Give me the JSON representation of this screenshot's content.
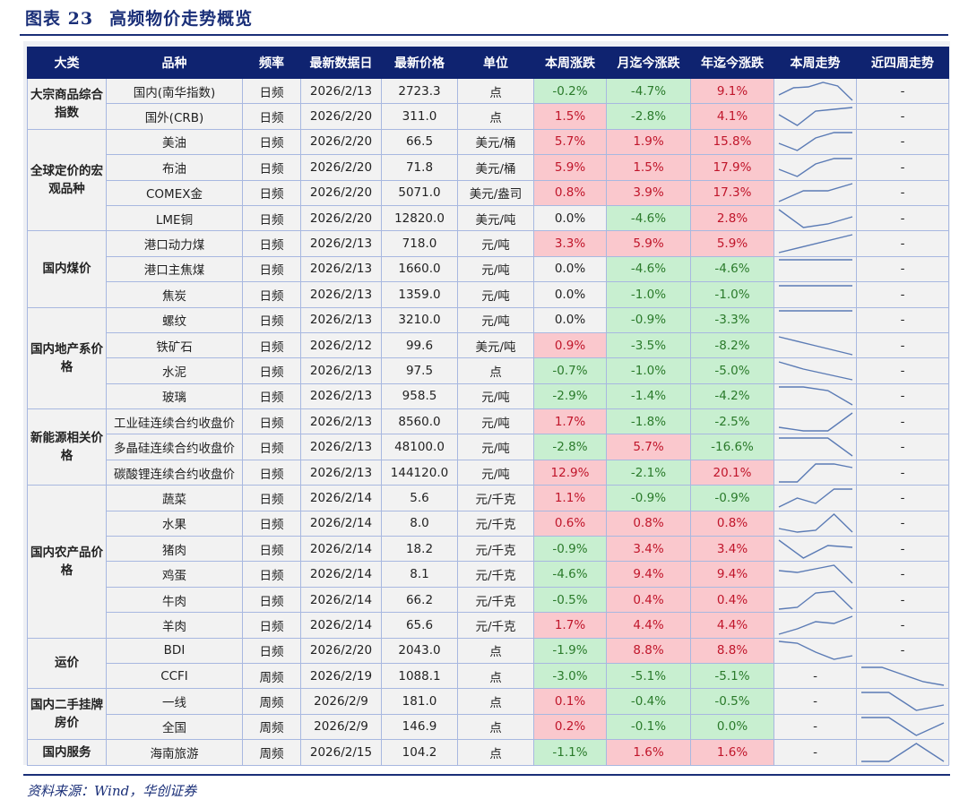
{
  "title": {
    "fig": "图表 23",
    "text": "高频物价走势概览"
  },
  "headers": [
    "大类",
    "品种",
    "频率",
    "最新数据日",
    "最新价格",
    "单位",
    "本周涨跌",
    "月迄今涨跌",
    "年迄今涨跌",
    "本周走势",
    "近四周走势"
  ],
  "groups": [
    {
      "name": "大宗商品综合指数",
      "rows": [
        {
          "item": "国内(南华指数)",
          "freq": "日频",
          "date": "2026/2/13",
          "price": "2723.3",
          "unit": "点",
          "wk": "-0.2%",
          "mtd": "-4.7%",
          "ytd": "9.1%",
          "week_trend": [
            3,
            7,
            7.5,
            10,
            8,
            0
          ],
          "four_week": "-"
        },
        {
          "item": "国外(CRB)",
          "freq": "日频",
          "date": "2026/2/20",
          "price": "311.0",
          "unit": "点",
          "wk": "1.5%",
          "mtd": "-2.8%",
          "ytd": "4.1%",
          "week_trend": [
            6,
            0,
            8,
            9,
            10
          ],
          "four_week": "-"
        }
      ]
    },
    {
      "name": "全球定价的宏观品种",
      "rows": [
        {
          "item": "美油",
          "freq": "日频",
          "date": "2026/2/20",
          "price": "66.5",
          "unit": "美元/桶",
          "wk": "5.7%",
          "mtd": "1.9%",
          "ytd": "15.8%",
          "week_trend": [
            4,
            0,
            7,
            10,
            10
          ],
          "four_week": "-"
        },
        {
          "item": "布油",
          "freq": "日频",
          "date": "2026/2/20",
          "price": "71.8",
          "unit": "美元/桶",
          "wk": "5.9%",
          "mtd": "1.5%",
          "ytd": "17.9%",
          "week_trend": [
            4,
            0,
            7,
            10,
            10
          ],
          "four_week": "-"
        },
        {
          "item": "COMEX金",
          "freq": "日频",
          "date": "2026/2/20",
          "price": "5071.0",
          "unit": "美元/盎司",
          "wk": "0.8%",
          "mtd": "3.9%",
          "ytd": "17.3%",
          "week_trend": [
            0,
            6,
            6,
            10
          ],
          "four_week": "-"
        },
        {
          "item": "LME铜",
          "freq": "日频",
          "date": "2026/2/20",
          "price": "12820.0",
          "unit": "美元/吨",
          "wk": "0.0%",
          "mtd": "-4.6%",
          "ytd": "2.8%",
          "week_trend": [
            10,
            0,
            2,
            6
          ],
          "four_week": "-"
        }
      ]
    },
    {
      "name": "国内煤价",
      "rows": [
        {
          "item": "港口动力煤",
          "freq": "日频",
          "date": "2026/2/13",
          "price": "718.0",
          "unit": "元/吨",
          "wk": "3.3%",
          "mtd": "5.9%",
          "ytd": "5.9%",
          "week_trend": [
            0,
            10
          ],
          "four_week": "-"
        },
        {
          "item": "港口主焦煤",
          "freq": "日频",
          "date": "2026/2/13",
          "price": "1660.0",
          "unit": "元/吨",
          "wk": "0.0%",
          "mtd": "-4.6%",
          "ytd": "-4.6%",
          "week_trend": [
            10,
            10
          ],
          "four_week": "-"
        },
        {
          "item": "焦炭",
          "freq": "日频",
          "date": "2026/2/13",
          "price": "1359.0",
          "unit": "元/吨",
          "wk": "0.0%",
          "mtd": "-1.0%",
          "ytd": "-1.0%",
          "week_trend": [
            10,
            10
          ],
          "four_week": "-"
        }
      ]
    },
    {
      "name": "国内地产系价格",
      "rows": [
        {
          "item": "螺纹",
          "freq": "日频",
          "date": "2026/2/13",
          "price": "3210.0",
          "unit": "元/吨",
          "wk": "0.0%",
          "mtd": "-0.9%",
          "ytd": "-3.3%",
          "week_trend": [
            10,
            10
          ],
          "four_week": "-"
        },
        {
          "item": "铁矿石",
          "freq": "日频",
          "date": "2026/2/12",
          "price": "99.6",
          "unit": "美元/吨",
          "wk": "0.9%",
          "mtd": "-3.5%",
          "ytd": "-8.2%",
          "week_trend": [
            10,
            5,
            0
          ],
          "four_week": "-"
        },
        {
          "item": "水泥",
          "freq": "日频",
          "date": "2026/2/13",
          "price": "97.5",
          "unit": "点",
          "wk": "-0.7%",
          "mtd": "-1.0%",
          "ytd": "-5.0%",
          "week_trend": [
            10,
            6,
            3,
            0
          ],
          "four_week": "-"
        },
        {
          "item": "玻璃",
          "freq": "日频",
          "date": "2026/2/13",
          "price": "958.5",
          "unit": "元/吨",
          "wk": "-2.9%",
          "mtd": "-1.4%",
          "ytd": "-4.2%",
          "week_trend": [
            10,
            10,
            8,
            0
          ],
          "four_week": "-"
        }
      ]
    },
    {
      "name": "新能源相关价格",
      "rows": [
        {
          "item": "工业硅连续合约收盘价",
          "freq": "日频",
          "date": "2026/2/13",
          "price": "8560.0",
          "unit": "元/吨",
          "wk": "1.7%",
          "mtd": "-1.8%",
          "ytd": "-2.5%",
          "week_trend": [
            2,
            0,
            0,
            10
          ],
          "four_week": "-"
        },
        {
          "item": "多晶硅连续合约收盘价",
          "freq": "日频",
          "date": "2026/2/13",
          "price": "48100.0",
          "unit": "元/吨",
          "wk": "-2.8%",
          "mtd": "5.7%",
          "ytd": "-16.6%",
          "week_trend": [
            10,
            10,
            10,
            0
          ],
          "four_week": "-"
        },
        {
          "item": "碳酸锂连续合约收盘价",
          "freq": "日频",
          "date": "2026/2/13",
          "price": "144120.0",
          "unit": "元/吨",
          "wk": "12.9%",
          "mtd": "-2.1%",
          "ytd": "20.1%",
          "week_trend": [
            0,
            0,
            10,
            10,
            8
          ],
          "four_week": "-"
        }
      ]
    },
    {
      "name": "国内农产品价格",
      "rows": [
        {
          "item": "蔬菜",
          "freq": "日频",
          "date": "2026/2/14",
          "price": "5.6",
          "unit": "元/千克",
          "wk": "1.1%",
          "mtd": "-0.9%",
          "ytd": "-0.9%",
          "week_trend": [
            0,
            5,
            2,
            10,
            10
          ],
          "four_week": "-"
        },
        {
          "item": "水果",
          "freq": "日频",
          "date": "2026/2/14",
          "price": "8.0",
          "unit": "元/千克",
          "wk": "0.6%",
          "mtd": "0.8%",
          "ytd": "0.8%",
          "week_trend": [
            2,
            0,
            1,
            10,
            0
          ],
          "four_week": "-"
        },
        {
          "item": "猪肉",
          "freq": "日频",
          "date": "2026/2/14",
          "price": "18.2",
          "unit": "元/千克",
          "wk": "-0.9%",
          "mtd": "3.4%",
          "ytd": "3.4%",
          "week_trend": [
            10,
            0,
            7,
            6
          ],
          "four_week": "-"
        },
        {
          "item": "鸡蛋",
          "freq": "日频",
          "date": "2026/2/14",
          "price": "8.1",
          "unit": "元/千克",
          "wk": "-4.6%",
          "mtd": "9.4%",
          "ytd": "9.4%",
          "week_trend": [
            7,
            6,
            8,
            10,
            0
          ],
          "four_week": "-"
        },
        {
          "item": "牛肉",
          "freq": "日频",
          "date": "2026/2/14",
          "price": "66.2",
          "unit": "元/千克",
          "wk": "-0.5%",
          "mtd": "0.4%",
          "ytd": "0.4%",
          "week_trend": [
            0,
            1,
            9,
            10,
            0
          ],
          "four_week": "-"
        },
        {
          "item": "羊肉",
          "freq": "日频",
          "date": "2026/2/14",
          "price": "65.6",
          "unit": "元/千克",
          "wk": "1.7%",
          "mtd": "4.4%",
          "ytd": "4.4%",
          "week_trend": [
            0,
            3,
            7,
            6,
            10
          ],
          "four_week": "-"
        }
      ]
    },
    {
      "name": "运价",
      "rows": [
        {
          "item": "BDI",
          "freq": "日频",
          "date": "2026/2/20",
          "price": "2043.0",
          "unit": "点",
          "wk": "-1.9%",
          "mtd": "8.8%",
          "ytd": "8.8%",
          "week_trend": [
            10,
            9,
            4,
            0,
            2
          ],
          "four_week": "-"
        },
        {
          "item": "CCFI",
          "freq": "周频",
          "date": "2026/2/19",
          "price": "1088.1",
          "unit": "点",
          "wk": "-3.0%",
          "mtd": "-5.1%",
          "ytd": "-5.1%",
          "week_trend": "-",
          "four_week": [
            10,
            10,
            6,
            2,
            0
          ]
        }
      ]
    },
    {
      "name": "国内二手挂牌房价",
      "rows": [
        {
          "item": "一线",
          "freq": "周频",
          "date": "2026/2/9",
          "price": "181.0",
          "unit": "点",
          "wk": "0.1%",
          "mtd": "-0.4%",
          "ytd": "-0.5%",
          "week_trend": "-",
          "four_week": [
            10,
            10,
            0,
            3
          ]
        },
        {
          "item": "全国",
          "freq": "周频",
          "date": "2026/2/9",
          "price": "146.9",
          "unit": "点",
          "wk": "0.2%",
          "mtd": "-0.1%",
          "ytd": "0.0%",
          "ytd_class": "down",
          "week_trend": "-",
          "four_week": [
            10,
            10,
            0,
            7
          ]
        }
      ]
    },
    {
      "name": "国内服务",
      "rows": [
        {
          "item": "海南旅游",
          "freq": "周频",
          "date": "2026/2/15",
          "price": "104.2",
          "unit": "点",
          "wk": "-1.1%",
          "mtd": "1.6%",
          "ytd": "1.6%",
          "week_trend": "-",
          "four_week": [
            0,
            0,
            10,
            0
          ]
        }
      ]
    }
  ],
  "source": "资料来源：Wind，华创证券",
  "colors": {
    "header": "#0f2370",
    "up_bg": "#fac8cd",
    "up_text": "#c0152a",
    "down_bg": "#c8efd0",
    "down_text": "#2a7a2a",
    "line": "#5b7bb5"
  }
}
